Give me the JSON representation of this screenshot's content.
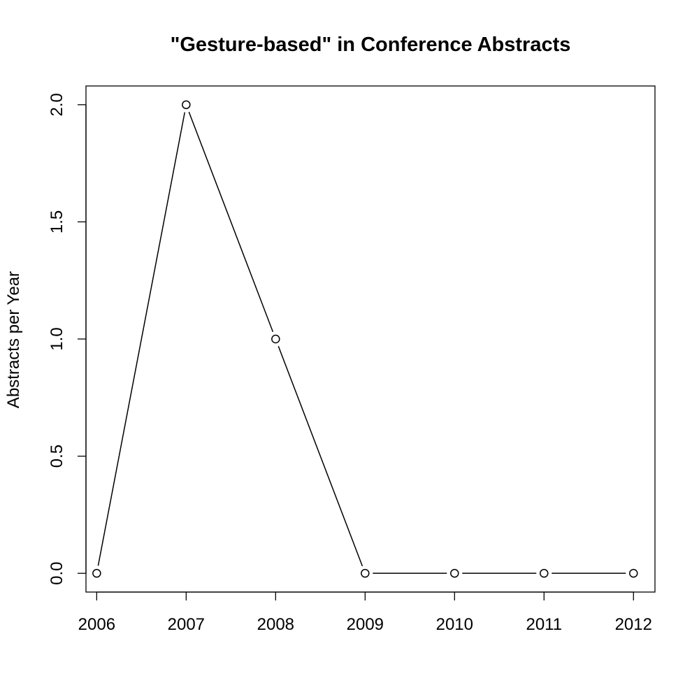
{
  "chart_data": {
    "type": "line",
    "title": "\"Gesture-based\" in Conference Abstracts",
    "xlabel": "",
    "ylabel": "Abstracts per Year",
    "x": [
      2006,
      2007,
      2008,
      2009,
      2010,
      2011,
      2012
    ],
    "x_tick_labels": [
      "2006",
      "2007",
      "2008",
      "2009",
      "2010",
      "2011",
      "2012"
    ],
    "values": [
      0,
      2,
      1,
      0,
      0,
      0,
      0
    ],
    "y_ticks": [
      0,
      0.5,
      1,
      1.5,
      2
    ],
    "y_tick_labels": [
      "0.0",
      "0.5",
      "1.0",
      "1.5",
      "2.0"
    ],
    "xlim": [
      2005.88,
      2012.24
    ],
    "ylim": [
      -0.08,
      2.08
    ],
    "line_style": "both",
    "marker": "open-circle",
    "color": "#000000",
    "grid": false,
    "legend": "none"
  }
}
